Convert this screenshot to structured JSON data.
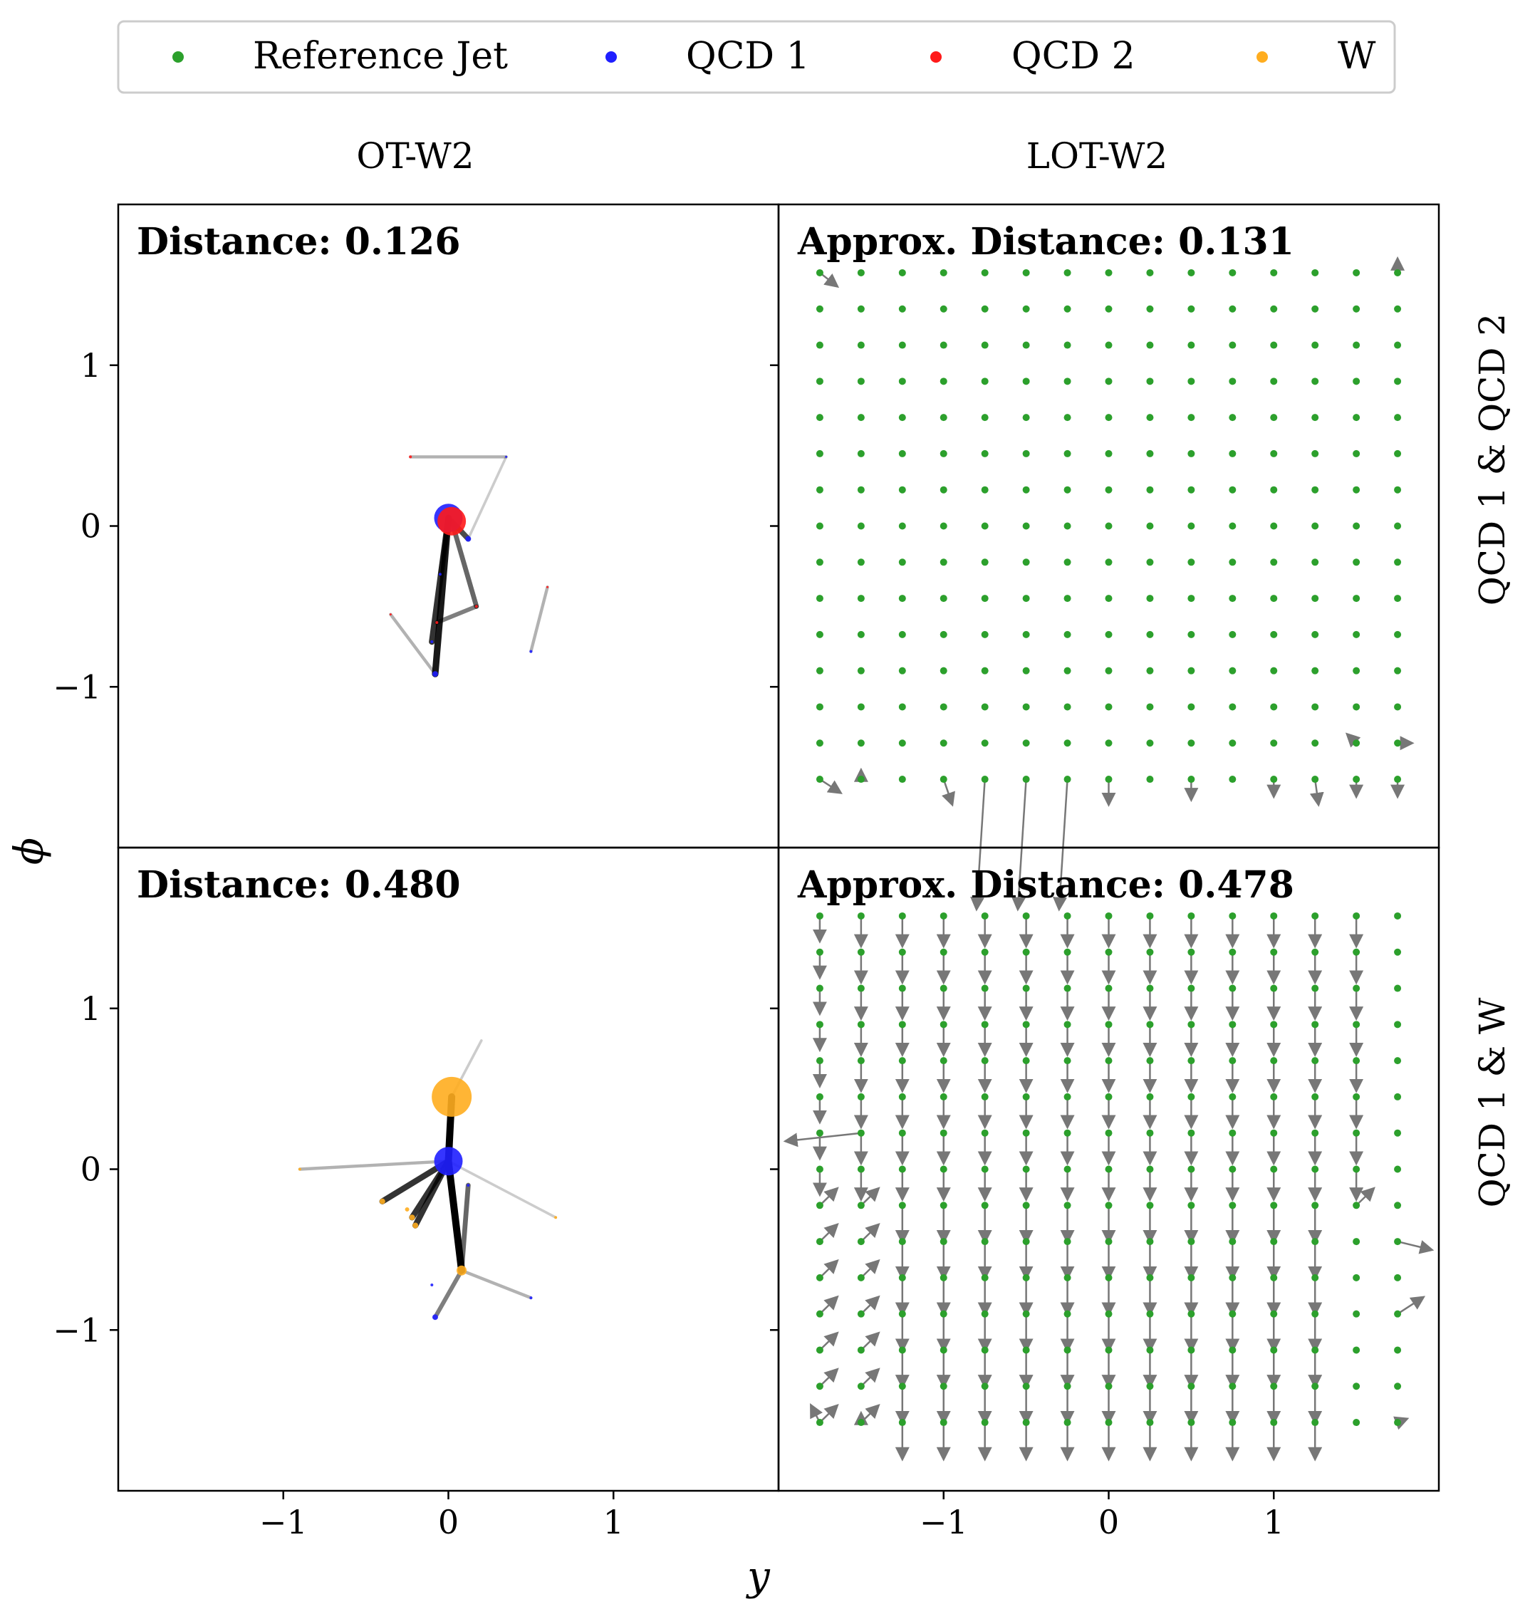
{
  "legend": {
    "entries": [
      {
        "label": "Reference Jet",
        "color": "#2ca02c"
      },
      {
        "label": "QCD 1",
        "color": "#1f1fff"
      },
      {
        "label": "QCD 2",
        "color": "#ff1a1a"
      },
      {
        "label": "W",
        "color": "#ffad1f"
      }
    ]
  },
  "columns": [
    "OT-W2",
    "LOT-W2"
  ],
  "rows": [
    "QCD 1 & QCD 2",
    "QCD 1 & W"
  ],
  "axes": {
    "xlabel": "y",
    "ylabel": "ϕ",
    "xticks": [
      "−1",
      "0",
      "1"
    ],
    "yticks": [
      "1",
      "0",
      "−1"
    ]
  },
  "panels": [
    {
      "id": "ot-qcd1-qcd2",
      "label": "Distance: 0.126"
    },
    {
      "id": "lot-qcd1-qcd2",
      "label": "Approx. Distance: 0.131"
    },
    {
      "id": "ot-qcd1-w",
      "label": "Distance: 0.480"
    },
    {
      "id": "lot-qcd1-w",
      "label": "Approx. Distance: 0.478"
    }
  ],
  "chart_data": {
    "type": "scatter",
    "xlim": [
      -2.0,
      2.0
    ],
    "ylim": [
      -2.0,
      2.0
    ],
    "grid": false,
    "legend_position": "top",
    "reference_grid": {
      "x_min": -1.75,
      "x_max": 1.75,
      "y_min": -1.575,
      "y_max": 1.575,
      "n": 15
    },
    "panels": [
      {
        "id": "ot-qcd1-qcd2",
        "series": [
          {
            "name": "QCD 1",
            "color": "#1f1fff",
            "points": [
              [
                0.0,
                0.05,
                20
              ],
              [
                0.12,
                -0.08,
                4
              ],
              [
                -0.08,
                -0.92,
                4
              ],
              [
                -0.1,
                -0.72,
                2
              ],
              [
                0.5,
                -0.78,
                2
              ],
              [
                0.35,
                0.43,
                1.5
              ],
              [
                -0.05,
                -0.3,
                2
              ]
            ]
          },
          {
            "name": "QCD 2",
            "color": "#ff1a1a",
            "points": [
              [
                0.02,
                0.03,
                20
              ],
              [
                -0.23,
                0.43,
                2
              ],
              [
                0.17,
                -0.5,
                2
              ],
              [
                -0.07,
                -0.6,
                2
              ],
              [
                -0.35,
                -0.55,
                1.5
              ],
              [
                0.6,
                -0.38,
                1.5
              ]
            ]
          }
        ],
        "links": [
          [
            0.0,
            0.05,
            -0.08,
            -0.92,
            0.9
          ],
          [
            0.0,
            0.05,
            -0.1,
            -0.72,
            0.8
          ],
          [
            0.02,
            0.03,
            0.12,
            -0.08,
            0.7
          ],
          [
            0.02,
            0.03,
            0.17,
            -0.5,
            0.6
          ],
          [
            0.17,
            -0.5,
            -0.07,
            -0.6,
            0.5
          ],
          [
            -0.23,
            0.43,
            0.35,
            0.43,
            0.3
          ],
          [
            0.35,
            0.43,
            0.12,
            -0.08,
            0.2
          ],
          [
            0.5,
            -0.78,
            0.6,
            -0.38,
            0.3
          ],
          [
            -0.35,
            -0.55,
            -0.08,
            -0.92,
            0.3
          ],
          [
            -0.05,
            -0.3,
            0.0,
            0.05,
            0.5
          ]
        ]
      },
      {
        "id": "lot-qcd1-qcd2",
        "series": [
          {
            "name": "Reference Jet",
            "color": "#2ca02c"
          }
        ],
        "vectors": [
          [
            -1.75,
            1.575,
            0.1,
            -0.08
          ],
          [
            1.75,
            1.575,
            0.0,
            0.08
          ],
          [
            -1.75,
            -1.575,
            0.12,
            -0.08
          ],
          [
            -1.5,
            -1.575,
            0.0,
            0.05
          ],
          [
            -1.0,
            -1.575,
            0.05,
            -0.15
          ],
          [
            -0.75,
            -1.575,
            -0.05,
            -0.8
          ],
          [
            -0.5,
            -1.575,
            -0.05,
            -0.8
          ],
          [
            -0.25,
            -1.575,
            -0.05,
            -0.8
          ],
          [
            0.0,
            -1.575,
            0.0,
            -0.15
          ],
          [
            0.5,
            -1.575,
            0.0,
            -0.12
          ],
          [
            1.0,
            -1.575,
            0.0,
            -0.1
          ],
          [
            1.25,
            -1.575,
            0.02,
            -0.15
          ],
          [
            1.5,
            -1.575,
            0.0,
            -0.1
          ],
          [
            1.75,
            -1.575,
            0.0,
            -0.1
          ],
          [
            1.5,
            -1.35,
            -0.05,
            0.05
          ],
          [
            1.75,
            -1.35,
            0.08,
            0.0
          ]
        ]
      },
      {
        "id": "ot-qcd1-w",
        "series": [
          {
            "name": "QCD 1",
            "color": "#1f1fff",
            "points": [
              [
                0.0,
                0.05,
                20
              ],
              [
                -0.08,
                -0.92,
                4
              ],
              [
                0.5,
                -0.8,
                2
              ],
              [
                0.12,
                -0.1,
                2
              ],
              [
                -0.1,
                -0.72,
                2
              ]
            ]
          },
          {
            "name": "W",
            "color": "#ffad1f",
            "points": [
              [
                0.02,
                0.45,
                28
              ],
              [
                0.08,
                -0.63,
                7
              ],
              [
                -0.4,
                -0.2,
                4
              ],
              [
                -0.22,
                -0.3,
                4
              ],
              [
                -0.2,
                -0.35,
                4
              ],
              [
                -0.25,
                -0.25,
                3
              ],
              [
                -0.9,
                0.0,
                2
              ],
              [
                0.65,
                -0.3,
                2
              ]
            ]
          }
        ],
        "links": [
          [
            0.0,
            0.05,
            0.02,
            0.45,
            1.0
          ],
          [
            0.0,
            0.05,
            0.08,
            -0.63,
            1.0
          ],
          [
            0.0,
            0.05,
            -0.4,
            -0.2,
            0.8
          ],
          [
            0.0,
            0.05,
            -0.22,
            -0.3,
            0.8
          ],
          [
            0.0,
            0.05,
            -0.2,
            -0.35,
            0.8
          ],
          [
            0.0,
            0.05,
            -0.9,
            0.0,
            0.3
          ],
          [
            -0.08,
            -0.92,
            0.08,
            -0.63,
            0.5
          ],
          [
            0.12,
            -0.1,
            0.08,
            -0.63,
            0.6
          ],
          [
            0.5,
            -0.8,
            0.08,
            -0.63,
            0.3
          ],
          [
            0.0,
            0.05,
            0.65,
            -0.3,
            0.2
          ],
          [
            0.02,
            0.45,
            0.2,
            0.8,
            0.2
          ]
        ]
      },
      {
        "id": "lot-qcd1-w",
        "series": [
          {
            "name": "Reference Jet",
            "color": "#2ca02c"
          }
        ],
        "vectors": [
          [
            -1.5,
            0.225,
            -0.45,
            -0.05
          ],
          [
            1.5,
            -0.225,
            0.1,
            0.1
          ],
          [
            1.75,
            -0.45,
            0.2,
            -0.05
          ],
          [
            1.75,
            -0.9,
            0.15,
            0.1
          ],
          [
            -1.75,
            -1.575,
            -0.05,
            0.1
          ],
          [
            -1.5,
            -1.575,
            0.0,
            0.05
          ],
          [
            1.75,
            -1.575,
            0.05,
            0.02
          ]
        ],
        "field_note": "left columns point up-right in lower half; middle columns long downward lines"
      }
    ]
  }
}
